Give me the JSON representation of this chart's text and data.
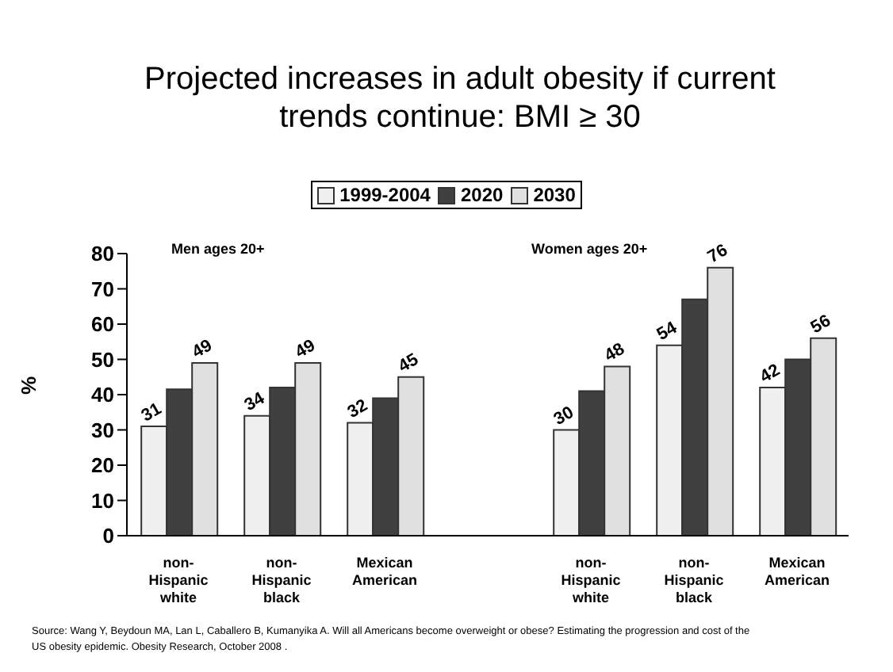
{
  "chart_data": {
    "type": "bar",
    "title": "Projected increases in adult obesity if current trends continue: BMI ≥ 30",
    "ylabel": "%",
    "categories": [
      "non-Hispanic white",
      "non-Hispanic black",
      "Mexican American",
      null,
      "non-Hispanic white",
      "non-Hispanic black",
      "Mexican American"
    ],
    "series": [
      {
        "name": "1999-2004",
        "color": "#f0f0f0",
        "values": [
          31,
          34,
          32,
          null,
          30,
          54,
          42
        ],
        "value_labels": [
          "31",
          "34",
          "32",
          null,
          "30",
          "54",
          "42"
        ]
      },
      {
        "name": "2020",
        "color": "#404040",
        "values": [
          41.5,
          42,
          39,
          null,
          41,
          67,
          50
        ]
      },
      {
        "name": "2030",
        "color": "#e0e0e0",
        "values": [
          49,
          49,
          45,
          null,
          48,
          76,
          56
        ],
        "value_labels": [
          "49",
          "49",
          "45",
          null,
          "48",
          "76",
          "56"
        ]
      }
    ],
    "ylim": [
      0,
      80
    ],
    "yticks": [
      0,
      10,
      20,
      30,
      40,
      50,
      60,
      70,
      80
    ],
    "grid": false,
    "legend": "top",
    "annotations": [
      "Men ages 20+",
      "Women ages 20+",
      "Source: Wang Y, Beydoun MA, Lan L, Caballero B, Kumanyika A. Will all Americans become overweight or obese? Estimating the progression and cost of the US obesity epidemic.  Obesity Research, October 2008 ."
    ]
  }
}
